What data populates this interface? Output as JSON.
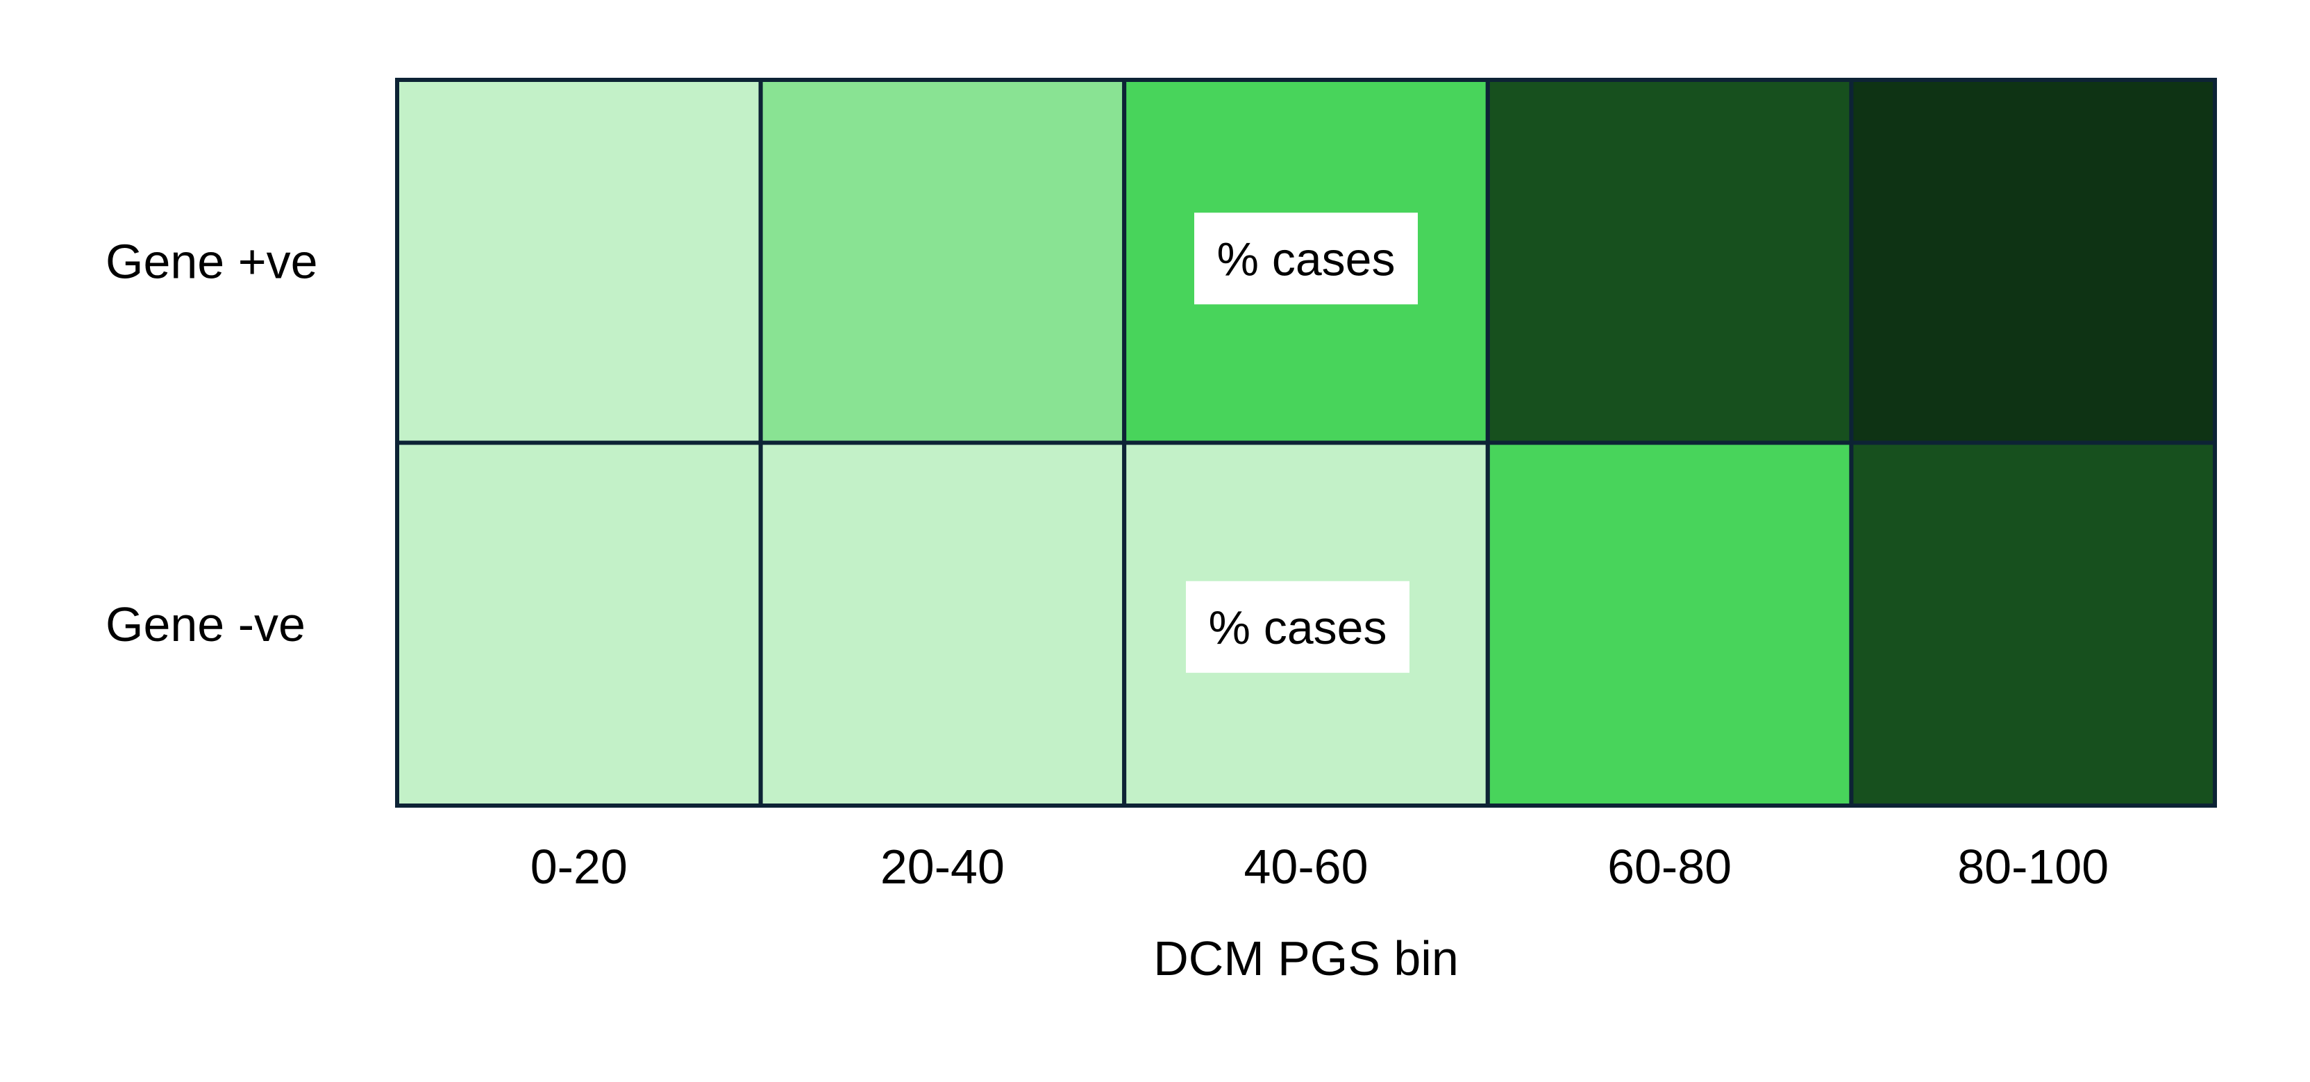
{
  "chart_data": {
    "type": "heatmap",
    "title": "",
    "xlabel": "DCM PGS bin",
    "ylabel": "",
    "x_categories": [
      "0-20",
      "20-40",
      "40-60",
      "60-80",
      "80-100"
    ],
    "y_categories": [
      "Gene +ve",
      "Gene -ve"
    ],
    "color_scale": [
      "#c3f1c8",
      "#89e393",
      "#48d45b",
      "#17501e",
      "#0e3314"
    ],
    "levels": [
      [
        0,
        1,
        2,
        3,
        4
      ],
      [
        0,
        0,
        0,
        2,
        3
      ]
    ],
    "annotations": [
      {
        "row": 0,
        "col": 2,
        "text": "% cases"
      },
      {
        "row": 1,
        "col": 2,
        "text": "% cases"
      }
    ],
    "grid_color": "#0d2335",
    "legend": "none"
  }
}
